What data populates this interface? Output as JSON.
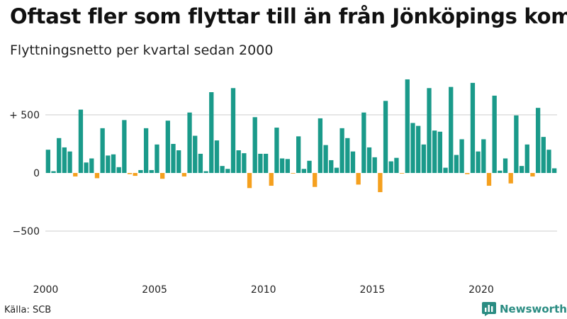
{
  "title": "Oftast fler som flyttar till än från Jönköpings kommun",
  "subtitle": "Flyttningsnetto per kvartal sedan 2000",
  "source": "Källa: SCB",
  "brand": {
    "name": "Newsworthy",
    "icon": "bar-chart-logo-icon",
    "color": "#2a8c82"
  },
  "colors": {
    "positive": "#1a9a8a",
    "negative": "#f5a01e",
    "grid": "#cccccc"
  },
  "chart_data": {
    "type": "bar",
    "title": "Oftast fler som flyttar till än från Jönköpings kommun",
    "subtitle": "Flyttningsnetto per kvartal sedan 2000",
    "xlabel": "",
    "ylabel": "",
    "start_year": 2000,
    "quarters_per_year": 4,
    "x_ticks": [
      "2000",
      "2005",
      "2010",
      "2015",
      "2020"
    ],
    "y_ticks": [
      {
        "value": 500,
        "label": "+ 500"
      },
      {
        "value": 0,
        "label": "0"
      },
      {
        "value": -500,
        "label": "−500"
      }
    ],
    "ylim": [
      -850,
      850
    ],
    "grid": true,
    "legend": "none",
    "values": [
      200,
      15,
      300,
      220,
      185,
      -30,
      545,
      90,
      125,
      -45,
      385,
      150,
      160,
      50,
      455,
      -10,
      -25,
      25,
      385,
      25,
      245,
      -50,
      450,
      250,
      195,
      -30,
      520,
      320,
      165,
      15,
      695,
      280,
      60,
      35,
      730,
      195,
      170,
      -130,
      480,
      165,
      165,
      -110,
      390,
      125,
      120,
      -5,
      315,
      35,
      105,
      -120,
      470,
      240,
      110,
      45,
      385,
      300,
      185,
      -100,
      520,
      220,
      135,
      -165,
      620,
      100,
      130,
      -5,
      805,
      430,
      405,
      245,
      730,
      365,
      355,
      45,
      740,
      155,
      290,
      -10,
      775,
      185,
      290,
      -110,
      665,
      20,
      125,
      -90,
      495,
      60,
      245,
      -30,
      560,
      310,
      200,
      40
    ]
  }
}
